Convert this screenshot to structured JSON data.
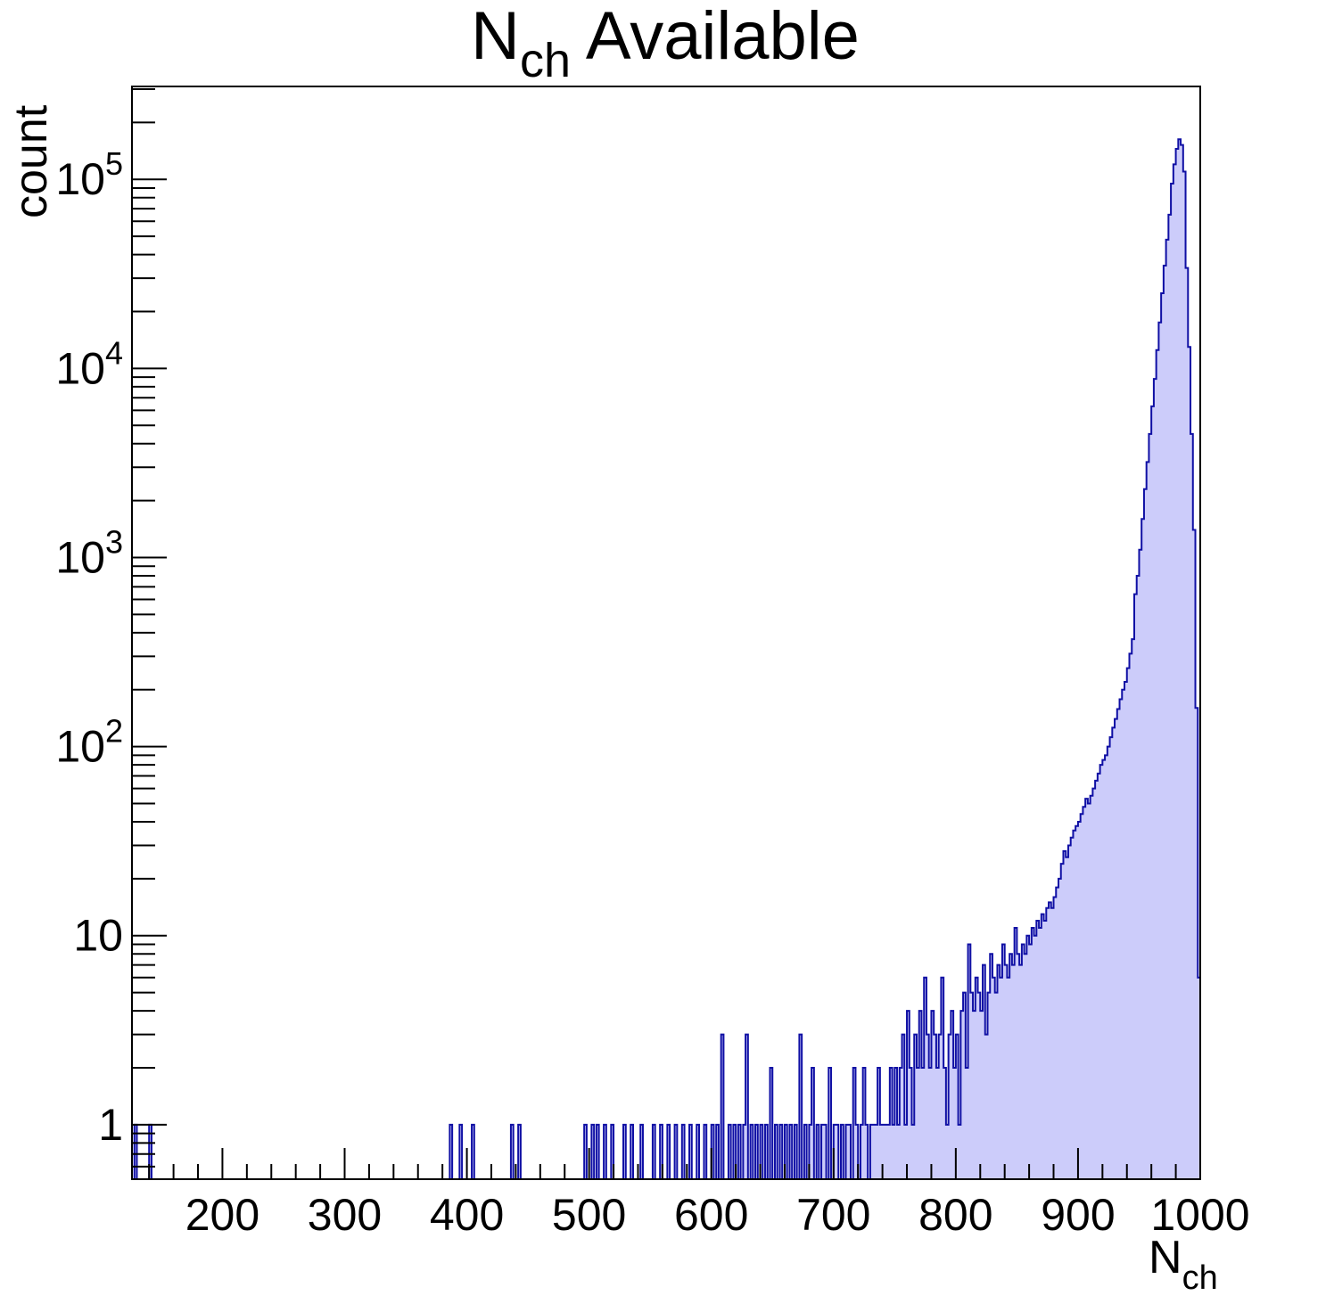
{
  "chart_data": {
    "type": "bar",
    "variant": "histogram-log-y",
    "title": {
      "main": "N",
      "sub": "ch",
      "rest": " Available"
    },
    "xlabel": {
      "main": "N",
      "sub": "ch"
    },
    "ylabel": "count",
    "x_range": [
      126,
      1000
    ],
    "y_range": [
      0.515,
      310000
    ],
    "y_scale": "log",
    "grid": false,
    "legend": "none",
    "x_ticks": [
      200,
      300,
      400,
      500,
      600,
      700,
      800,
      900,
      1000
    ],
    "x_tick_labels": [
      "200",
      "300",
      "400",
      "500",
      "600",
      "700",
      "800",
      "900",
      "1000"
    ],
    "x_minor_tick_step": 20,
    "y_tick_exponents": [
      0,
      1,
      2,
      3,
      4,
      5
    ],
    "y_tick_labels": [
      "1",
      "10",
      "10^2",
      "10^3",
      "10^4",
      "10^5"
    ],
    "bin_width": 2,
    "peak": {
      "x": 982,
      "count": 163000
    },
    "colors": {
      "fill": "#ccccfa",
      "line": "#0f0fa4",
      "axis": "#000000",
      "background": "#ffffff"
    },
    "sparse_bins": [
      [
        128,
        1
      ],
      [
        140,
        1
      ],
      [
        386,
        1
      ],
      [
        394,
        1
      ],
      [
        404,
        1
      ],
      [
        436,
        1
      ],
      [
        442,
        1
      ],
      [
        496,
        1
      ],
      [
        502,
        1
      ],
      [
        506,
        1
      ],
      [
        512,
        1
      ],
      [
        518,
        1
      ],
      [
        528,
        1
      ],
      [
        534,
        1
      ],
      [
        542,
        1
      ],
      [
        552,
        1
      ],
      [
        558,
        1
      ],
      [
        564,
        1
      ],
      [
        570,
        1
      ],
      [
        576,
        1
      ],
      [
        582,
        1
      ],
      [
        588,
        1
      ],
      [
        594,
        1
      ],
      [
        600,
        1
      ],
      [
        604,
        1
      ],
      [
        608,
        3
      ],
      [
        614,
        1
      ],
      [
        618,
        1
      ],
      [
        622,
        1
      ],
      [
        626,
        1
      ],
      [
        628,
        3
      ],
      [
        632,
        1
      ],
      [
        636,
        1
      ],
      [
        640,
        1
      ],
      [
        644,
        1
      ],
      [
        648,
        2
      ],
      [
        652,
        1
      ],
      [
        656,
        1
      ],
      [
        660,
        1
      ],
      [
        664,
        1
      ],
      [
        668,
        1
      ],
      [
        672,
        3
      ],
      [
        676,
        1
      ],
      [
        680,
        1
      ],
      [
        682,
        2
      ],
      [
        686,
        1
      ],
      [
        690,
        1
      ],
      [
        692,
        1
      ],
      [
        696,
        2
      ],
      [
        700,
        1
      ],
      [
        702,
        1
      ],
      [
        706,
        1
      ],
      [
        710,
        1
      ],
      [
        712,
        1
      ],
      [
        716,
        2
      ],
      [
        718,
        1
      ],
      [
        722,
        1
      ],
      [
        724,
        2
      ],
      [
        726,
        1
      ],
      [
        730,
        1
      ],
      [
        732,
        1
      ],
      [
        734,
        1
      ],
      [
        736,
        2
      ],
      [
        738,
        1
      ],
      [
        740,
        1
      ],
      [
        742,
        1
      ]
    ],
    "continuous_bins": {
      "start": 744,
      "step": 2,
      "counts": [
        1,
        2,
        1,
        2,
        1,
        2,
        3,
        1,
        4,
        2,
        1,
        3,
        2,
        4,
        2,
        6,
        3,
        2,
        4,
        3,
        2,
        3,
        6,
        2,
        1,
        3,
        4,
        2,
        3,
        1,
        4,
        5,
        2,
        9,
        5,
        4,
        6,
        5,
        4,
        7,
        3,
        5,
        8,
        6,
        5,
        7,
        6,
        9,
        7,
        6,
        8,
        7,
        11,
        8,
        7,
        9,
        8,
        10,
        9,
        11,
        10,
        12,
        11,
        13,
        12,
        14,
        15,
        14,
        16,
        18,
        20,
        24,
        28,
        26,
        30,
        33,
        36,
        38,
        40,
        44,
        48,
        53,
        50,
        55,
        60,
        66,
        72,
        80,
        85,
        90,
        100,
        112,
        126,
        140,
        158,
        178,
        200,
        220,
        260,
        310,
        370,
        640,
        800,
        1100,
        1600,
        2300,
        3200,
        4500,
        6300,
        8800,
        12500,
        17500,
        25000,
        35000,
        48000,
        65000,
        95000,
        120000,
        145000,
        163000,
        152000,
        110000,
        34000,
        13000,
        4500,
        1400,
        160,
        6
      ]
    }
  }
}
